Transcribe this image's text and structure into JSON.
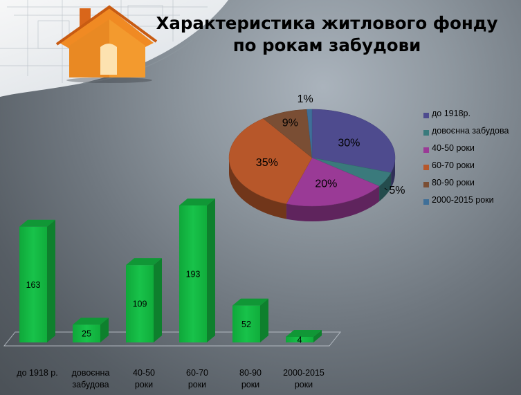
{
  "title": {
    "line1": "Характеристика житлового фонду",
    "line2": "по рокам забудови"
  },
  "chart_data": [
    {
      "type": "pie",
      "categories": [
        "до 1918р.",
        "довоєнна забудова",
        "40-50 роки",
        "60-70 роки",
        "80-90 роки",
        "2000-2015 роки"
      ],
      "values": [
        30,
        5,
        20,
        35,
        9,
        1
      ],
      "data_labels": [
        "30%",
        "5%",
        "20%",
        "35%",
        "9%",
        "1%"
      ],
      "colors": [
        "#4e4b8e",
        "#3a7a7c",
        "#9a3a96",
        "#b7572a",
        "#7a4e34",
        "#3f6f98"
      ],
      "legend_position": "right"
    },
    {
      "type": "bar",
      "categories": [
        "до 1918 р.",
        "довоєнна забудова",
        "40-50 роки",
        "60-70 роки",
        "80-90 роки",
        "2000-2015 роки"
      ],
      "values": [
        163,
        25,
        109,
        193,
        52,
        4
      ],
      "color": "#13b23f",
      "ylim": [
        0,
        200
      ],
      "grid": false
    }
  ],
  "icons": {
    "house": "house-icon",
    "blueprint": "blueprint-background"
  }
}
